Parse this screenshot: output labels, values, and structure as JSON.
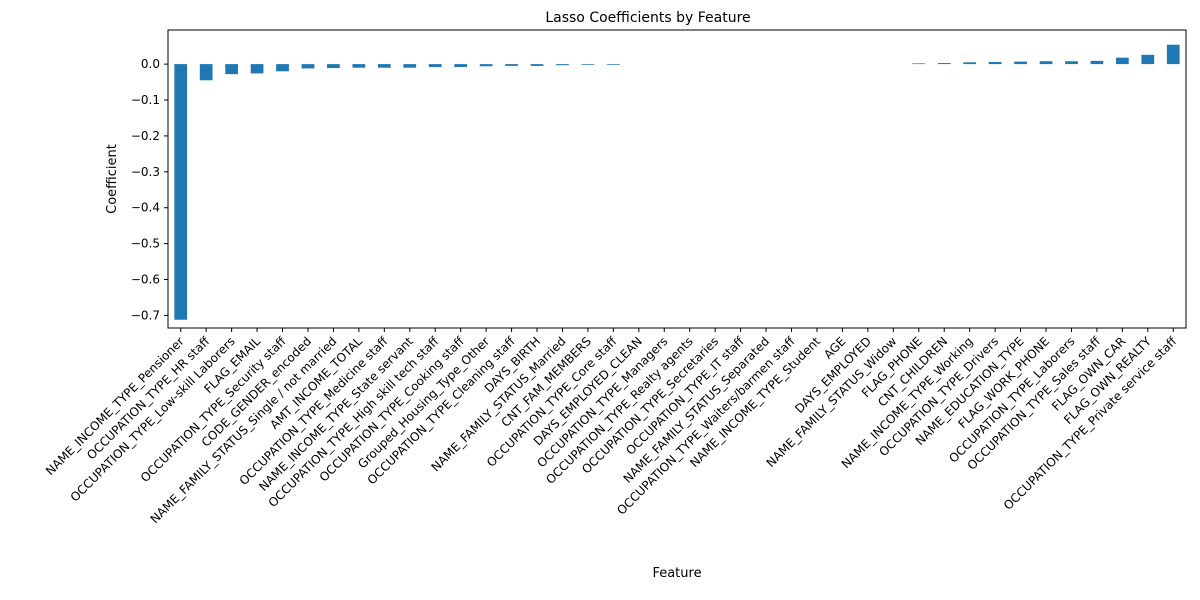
{
  "chart_data": {
    "type": "bar",
    "title": "Lasso Coefficients by Feature",
    "xlabel": "Feature",
    "ylabel": "Coefficient",
    "ylim": [
      -0.735,
      0.095
    ],
    "yticks": [
      0.0,
      -0.1,
      -0.2,
      -0.3,
      -0.4,
      -0.5,
      -0.6,
      -0.7
    ],
    "ytick_labels": [
      "0.0",
      "−0.1",
      "−0.2",
      "−0.3",
      "−0.4",
      "−0.5",
      "−0.6",
      "−0.7"
    ],
    "grid": false,
    "bar_color": "#1f77b4",
    "categories": [
      "NAME_INCOME_TYPE_Pensioner",
      "OCCUPATION_TYPE_HR staff",
      "OCCUPATION_TYPE_Low-skill Laborers",
      "FLAG_EMAIL",
      "OCCUPATION_TYPE_Security staff",
      "CODE_GENDER_encoded",
      "NAME_FAMILY_STATUS_Single / not married",
      "AMT_INCOME_TOTAL",
      "OCCUPATION_TYPE_Medicine staff",
      "NAME_INCOME_TYPE_State servant",
      "OCCUPATION_TYPE_High skill tech staff",
      "OCCUPATION_TYPE_Cooking staff",
      "Grouped_Housing_Type_Other",
      "OCCUPATION_TYPE_Cleaning staff",
      "DAYS_BIRTH",
      "NAME_FAMILY_STATUS_Married",
      "CNT_FAM_MEMBERS",
      "OCCUPATION_TYPE_Core staff",
      "DAYS_EMPLOYED_CLEAN",
      "OCCUPATION_TYPE_Managers",
      "OCCUPATION_TYPE_Realty agents",
      "OCCUPATION_TYPE_Secretaries",
      "OCCUPATION_TYPE_IT staff",
      "NAME_FAMILY_STATUS_Separated",
      "OCCUPATION_TYPE_Waiters/barmen staff",
      "NAME_INCOME_TYPE_Student",
      "AGE",
      "DAYS_EMPLOYED",
      "NAME_FAMILY_STATUS_Widow",
      "FLAG_PHONE",
      "CNT_CHILDREN",
      "NAME_INCOME_TYPE_Working",
      "OCCUPATION_TYPE_Drivers",
      "NAME_EDUCATION_TYPE",
      "FLAG_WORK_PHONE",
      "OCCUPATION_TYPE_Laborers",
      "OCCUPATION_TYPE_Sales staff",
      "FLAG_OWN_CAR",
      "FLAG_OWN_REALTY",
      "OCCUPATION_TYPE_Private service staff"
    ],
    "values": [
      -0.712,
      -0.045,
      -0.028,
      -0.026,
      -0.02,
      -0.012,
      -0.011,
      -0.01,
      -0.01,
      -0.01,
      -0.008,
      -0.008,
      -0.006,
      -0.005,
      -0.005,
      -0.003,
      -0.002,
      -0.002,
      0.0,
      0.0,
      0.0,
      0.0,
      0.0,
      0.0,
      0.0,
      0.0,
      0.0,
      0.0,
      0.0,
      0.002,
      0.003,
      0.005,
      0.006,
      0.007,
      0.008,
      0.008,
      0.009,
      0.018,
      0.026,
      0.054
    ]
  }
}
